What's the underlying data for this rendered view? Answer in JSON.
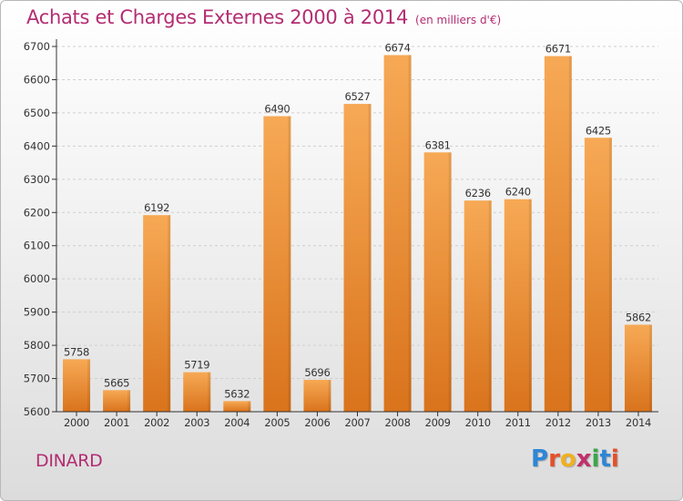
{
  "header": {
    "title": "Achats et Charges Externes 2000 à 2014",
    "subtitle": "(en milliers d'€)"
  },
  "footer": {
    "city": "DINARD",
    "logo_text": "Proxiti"
  },
  "colors": {
    "title": "#b32d72",
    "bar_top": "#f7a955",
    "bar_bottom": "#d9731c",
    "axis": "#333333",
    "grid": "#cfcfcf"
  },
  "chart_data": {
    "type": "bar",
    "title": "Achats et Charges Externes 2000 à 2014",
    "subtitle": "(en milliers d'€)",
    "categories": [
      "2000",
      "2001",
      "2002",
      "2003",
      "2004",
      "2005",
      "2006",
      "2007",
      "2008",
      "2009",
      "2010",
      "2011",
      "2012",
      "2013",
      "2014"
    ],
    "values": [
      5758,
      5665,
      6192,
      5719,
      5632,
      6490,
      5696,
      6527,
      6674,
      6381,
      6236,
      6240,
      6671,
      6425,
      5862
    ],
    "ylim": [
      5600,
      6700
    ],
    "yticks": [
      5600,
      5700,
      5800,
      5900,
      6000,
      6100,
      6200,
      6300,
      6400,
      6500,
      6600,
      6700
    ],
    "grid": true,
    "data_labels": true
  }
}
